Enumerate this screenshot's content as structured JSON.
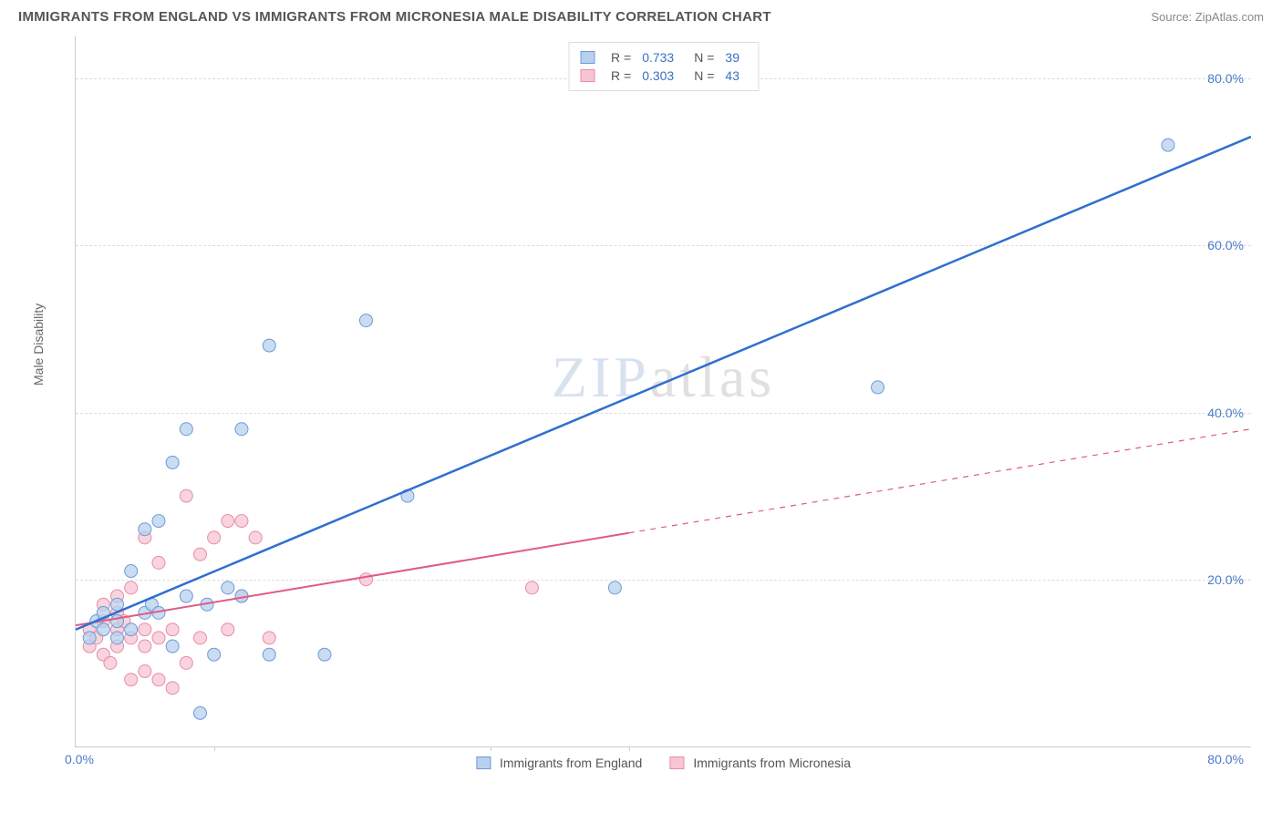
{
  "title": "IMMIGRANTS FROM ENGLAND VS IMMIGRANTS FROM MICRONESIA MALE DISABILITY CORRELATION CHART",
  "source": "Source: ZipAtlas.com",
  "watermark": {
    "zip": "ZIP",
    "atlas": "atlas"
  },
  "ylabel": "Male Disability",
  "chart": {
    "type": "scatter",
    "xlim": [
      0,
      85
    ],
    "ylim": [
      0,
      85
    ],
    "ytick_values": [
      20,
      40,
      60,
      80
    ],
    "ytick_labels": [
      "20.0%",
      "40.0%",
      "60.0%",
      "80.0%"
    ],
    "xtick_left": "0.0%",
    "xtick_right": "80.0%",
    "xtick_minor_positions": [
      10,
      30,
      40
    ],
    "background_color": "#ffffff",
    "grid_color": "#dddddd",
    "series": {
      "england": {
        "label": "Immigrants from England",
        "marker_fill": "#b8d0ee",
        "marker_stroke": "#6a9bd8",
        "marker_opacity": 0.75,
        "marker_radius": 7,
        "line_color": "#2f6fd0",
        "line_width": 2.5,
        "R": "0.733",
        "N": "39",
        "trend": {
          "x1": 0,
          "y1": 14,
          "x2": 85,
          "y2": 73,
          "dashed": false
        },
        "points": [
          [
            1,
            13
          ],
          [
            1.5,
            15
          ],
          [
            2,
            14
          ],
          [
            2,
            16
          ],
          [
            3,
            13
          ],
          [
            3,
            17
          ],
          [
            3,
            15
          ],
          [
            4,
            21
          ],
          [
            4,
            14
          ],
          [
            5,
            16
          ],
          [
            5,
            26
          ],
          [
            5.5,
            17
          ],
          [
            6,
            27
          ],
          [
            6,
            16
          ],
          [
            7,
            12
          ],
          [
            7,
            34
          ],
          [
            8,
            18
          ],
          [
            8,
            38
          ],
          [
            9,
            4
          ],
          [
            9.5,
            17
          ],
          [
            10,
            11
          ],
          [
            11,
            19
          ],
          [
            12,
            18
          ],
          [
            12,
            38
          ],
          [
            14,
            48
          ],
          [
            14,
            11
          ],
          [
            18,
            11
          ],
          [
            21,
            51
          ],
          [
            24,
            30
          ],
          [
            39,
            19
          ],
          [
            58,
            43
          ],
          [
            79,
            72
          ]
        ]
      },
      "micronesia": {
        "label": "Immigrants from Micronesia",
        "marker_fill": "#f6c6d3",
        "marker_stroke": "#e88ca5",
        "marker_opacity": 0.75,
        "marker_radius": 7,
        "line_color": "#e05a82",
        "line_width": 2,
        "R": "0.303",
        "N": "43",
        "trend": {
          "x1": 0,
          "y1": 14.5,
          "x2": 85,
          "y2": 38,
          "solid_until_x": 40
        },
        "points": [
          [
            1,
            12
          ],
          [
            1,
            14
          ],
          [
            1.5,
            13
          ],
          [
            2,
            11
          ],
          [
            2,
            15
          ],
          [
            2,
            17
          ],
          [
            2.5,
            10
          ],
          [
            3,
            12
          ],
          [
            3,
            14
          ],
          [
            3,
            18
          ],
          [
            3,
            16
          ],
          [
            3.5,
            15
          ],
          [
            4,
            13
          ],
          [
            4,
            8
          ],
          [
            4,
            19
          ],
          [
            5,
            9
          ],
          [
            5,
            12
          ],
          [
            5,
            14
          ],
          [
            5,
            25
          ],
          [
            6,
            8
          ],
          [
            6,
            13
          ],
          [
            6,
            22
          ],
          [
            7,
            14
          ],
          [
            7,
            7
          ],
          [
            8,
            10
          ],
          [
            8,
            30
          ],
          [
            9,
            13
          ],
          [
            9,
            23
          ],
          [
            10,
            25
          ],
          [
            11,
            14
          ],
          [
            11,
            27
          ],
          [
            12,
            18
          ],
          [
            12,
            27
          ],
          [
            13,
            25
          ],
          [
            14,
            13
          ],
          [
            21,
            20
          ],
          [
            33,
            19
          ]
        ]
      }
    },
    "legend_top": [
      {
        "series": "england",
        "R_label": "R =",
        "N_label": "N ="
      },
      {
        "series": "micronesia",
        "R_label": "R =",
        "N_label": "N ="
      }
    ]
  }
}
